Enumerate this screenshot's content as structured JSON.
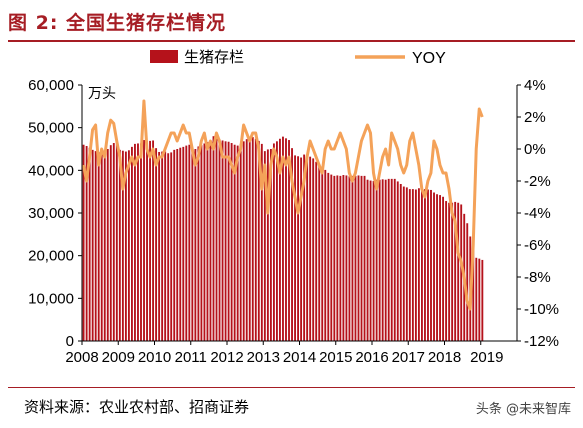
{
  "title": "图 2:  全国生猪存栏情况",
  "source": "资料来源：农业农村部、招商证券",
  "watermark": "头条 @未来智库",
  "colors": {
    "bar": "#b5121b",
    "line": "#f4a259",
    "title": "#a61d24"
  },
  "chart_data": {
    "type": "bar+line",
    "legend": [
      {
        "name": "生猪存栏",
        "kind": "bar"
      },
      {
        "name": "YOY",
        "kind": "line"
      }
    ],
    "left_axis_unit": "万头",
    "left_ylim": [
      0,
      60000
    ],
    "left_ticks": [
      "60,000",
      "50,000",
      "40,000",
      "30,000",
      "20,000",
      "10,000",
      "0"
    ],
    "left_tick_values": [
      60000,
      50000,
      40000,
      30000,
      20000,
      10000,
      0
    ],
    "right_ylim": [
      -12,
      4
    ],
    "right_ticks": [
      "4%",
      "2%",
      "0%",
      "-2%",
      "-4%",
      "-6%",
      "-8%",
      "-10%",
      "-12%"
    ],
    "right_tick_values": [
      4,
      2,
      0,
      -2,
      -4,
      -6,
      -8,
      -10,
      -12
    ],
    "x_ticks": [
      "2008",
      "2009",
      "2010",
      "2011",
      "2012",
      "2013",
      "2014",
      "2015",
      "2016",
      "2017",
      "2018",
      "2019"
    ],
    "x_start_year": 2008,
    "inventory_by_year": [
      [
        46000,
        45700,
        45300,
        44800,
        44500,
        44200,
        44000,
        44400,
        45000,
        45900,
        46400,
        46100
      ],
      [
        44800,
        44600,
        44400,
        44700,
        45500,
        46200,
        46300,
        46300,
        47100,
        46900,
        46900,
        47000
      ],
      [
        45200,
        44300,
        44400,
        44400,
        44000,
        44200,
        44800,
        45000,
        45300,
        45500,
        45800,
        46000
      ],
      [
        45000,
        45000,
        45600,
        45900,
        46300,
        46600,
        47100,
        48000,
        47700,
        47300,
        47000,
        46800
      ],
      [
        46700,
        46400,
        46000,
        45800,
        46200,
        46800,
        47300,
        47700,
        47800,
        47400,
        46900,
        46200
      ],
      [
        44500,
        44900,
        45000,
        46300,
        46800,
        47400,
        47900,
        47500,
        47100,
        45200,
        43500,
        43300
      ],
      [
        43000,
        43700,
        43500,
        43200,
        42800,
        42000,
        41400,
        40700,
        40100,
        39400,
        39000,
        38700
      ],
      [
        38800,
        38700,
        38900,
        38800,
        38600,
        38700,
        38700,
        38800,
        38700,
        38700,
        37800,
        37600
      ],
      [
        37500,
        37800,
        37800,
        37900,
        37800,
        38000,
        38000,
        38000,
        37400,
        36800,
        36200,
        36000
      ],
      [
        35600,
        35600,
        35500,
        35800,
        35600,
        35600,
        35500,
        35400,
        34800,
        34400,
        34200,
        33800
      ],
      [
        32800,
        32400,
        32400,
        32600,
        32400,
        32000,
        29800,
        27600,
        24500,
        21800,
        19500,
        19300
      ],
      [
        19000
      ]
    ],
    "yoy_by_year": [
      [
        -1.0,
        -2.0,
        -0.5,
        1.2,
        1.5,
        -1.0,
        0.0,
        -0.5,
        1.0,
        1.8,
        1.6,
        0.5
      ],
      [
        -0.5,
        -2.5,
        -1.5,
        -1.0,
        -0.5,
        -1.0,
        -0.5,
        -0.5,
        3.0,
        0.0,
        -0.5,
        0.0
      ],
      [
        -1.0,
        -0.5,
        -0.5,
        0.0,
        0.5,
        1.0,
        1.0,
        0.5,
        1.0,
        1.5,
        1.0,
        1.0
      ],
      [
        0.0,
        -1.0,
        -0.5,
        0.5,
        1.0,
        0.0,
        0.5,
        0.0,
        1.0,
        0.5,
        -0.5,
        -0.5
      ],
      [
        -0.5,
        -1.0,
        -1.5,
        -0.5,
        0.0,
        1.5,
        1.0,
        0.5,
        1.0,
        1.0,
        0.0,
        -2.5
      ],
      [
        -1.0,
        -4.0,
        -1.0,
        0.0,
        -0.5,
        -1.5,
        -0.5,
        -1.0,
        -0.5,
        -2.0,
        -3.0,
        -4.0
      ],
      [
        -3.0,
        -2.0,
        -0.5,
        0.5,
        0.0,
        -0.5,
        -1.0,
        -1.5,
        0.0,
        0.5,
        0.0,
        0.0
      ],
      [
        0.5,
        1.0,
        0.5,
        0.0,
        -1.5,
        -2.0,
        -1.5,
        -0.5,
        0.5,
        1.0,
        1.5,
        1.0
      ],
      [
        -1.5,
        -2.5,
        -1.5,
        -0.5,
        0.0,
        -1.0,
        1.0,
        0.5,
        0.0,
        -1.0,
        -1.5,
        -1.0
      ],
      [
        0.5,
        1.0,
        0.0,
        -1.0,
        -2.5,
        -3.0,
        -2.0,
        -1.5,
        0.5,
        0.0,
        -1.0,
        -1.5
      ],
      [
        -1.5,
        -2.5,
        -4.0,
        -4.5,
        -6.5,
        -7.0,
        -8.0,
        -9.5,
        -10.0,
        -6.0,
        0.0,
        2.5
      ],
      [
        2.0
      ]
    ]
  }
}
